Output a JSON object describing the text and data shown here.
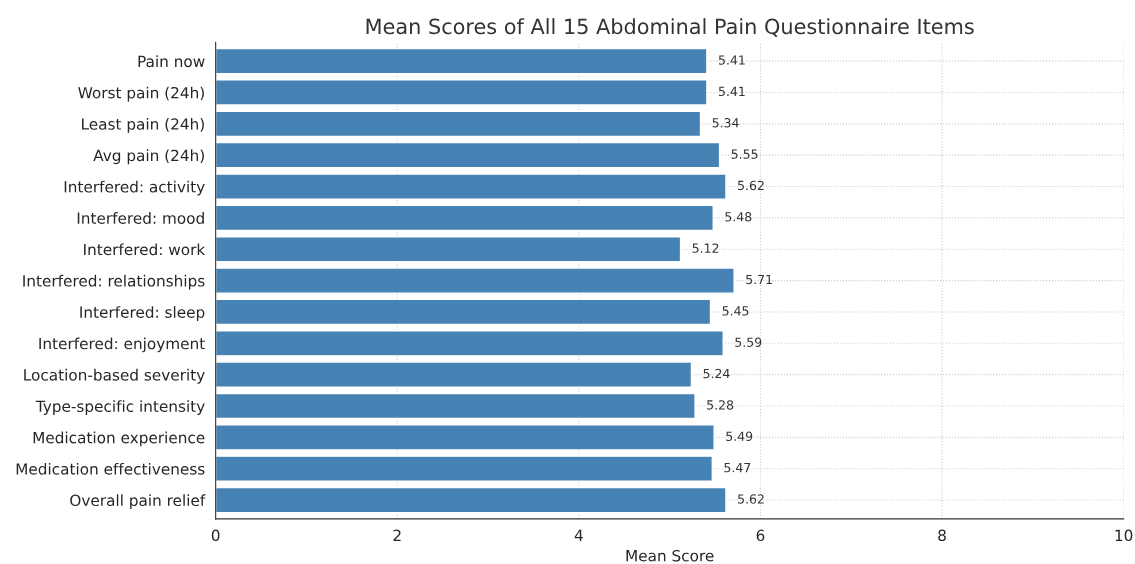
{
  "chart_data": {
    "type": "bar",
    "orientation": "horizontal",
    "title": "Mean Scores of All 15 Abdominal Pain Questionnaire Items",
    "xlabel": "Mean Score",
    "categories": [
      "Pain now",
      "Worst pain (24h)",
      "Least pain (24h)",
      "Avg pain (24h)",
      "Interfered: activity",
      "Interfered: mood",
      "Interfered: work",
      "Interfered: relationships",
      "Interfered: sleep",
      "Interfered: enjoyment",
      "Location-based severity",
      "Type-specific intensity",
      "Medication experience",
      "Medication effectiveness",
      "Overall pain relief"
    ],
    "values": [
      5.41,
      5.41,
      5.34,
      5.55,
      5.62,
      5.48,
      5.12,
      5.71,
      5.45,
      5.59,
      5.24,
      5.28,
      5.49,
      5.47,
      5.62
    ],
    "color": "#4682b4",
    "xlim": [
      0,
      10
    ],
    "xticks": [
      0,
      2,
      4,
      6,
      8,
      10
    ],
    "grid": true,
    "data_labels": true
  }
}
